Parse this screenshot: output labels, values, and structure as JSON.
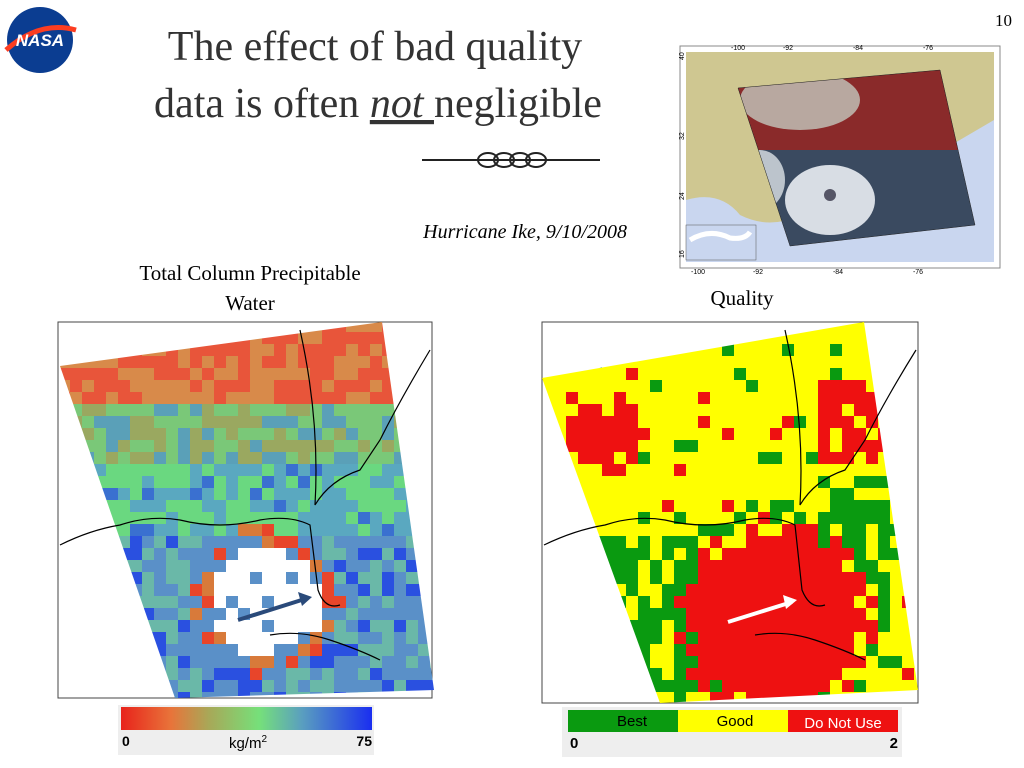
{
  "page_number": "10",
  "logo": "NASA",
  "title": {
    "line1": "The effect of bad quality",
    "line2_start": "data is often ",
    "emphasis": "not ",
    "line2_end": "negligible"
  },
  "subtitle": "Hurricane Ike, 9/10/2008",
  "inset_map": {
    "top_ticks": [
      "-100",
      "-92",
      "-84",
      "-76"
    ],
    "bottom_ticks": [
      "-100",
      "-92",
      "-84",
      "-76"
    ],
    "left_ticks": [
      "40",
      "32",
      "24",
      "16"
    ]
  },
  "left_panel": {
    "label_line1": "Total Column Precipitable",
    "label_line2": "Water",
    "scale_min": "0",
    "unit": "kg/m",
    "unit_sup": "2",
    "scale_max": "75"
  },
  "right_panel": {
    "label": "Quality",
    "legend": [
      "Best",
      "Good",
      "Do Not Use"
    ],
    "scale_min": "0",
    "scale_max": "2"
  }
}
